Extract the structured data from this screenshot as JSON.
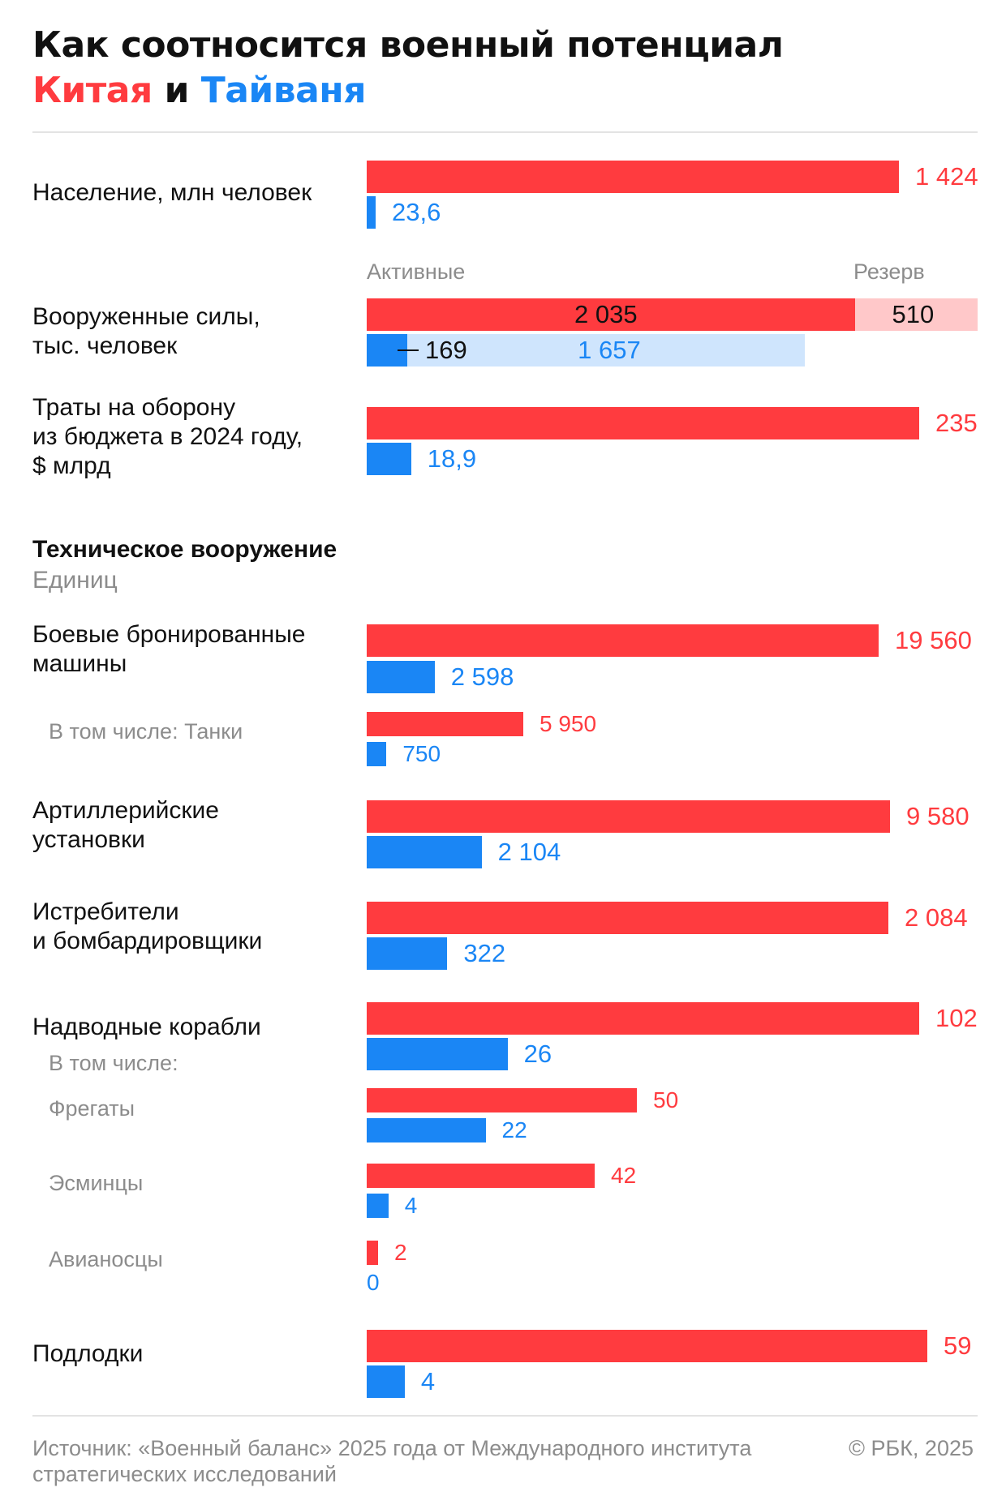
{
  "title": {
    "line1": "Как соотносится военный потенциал",
    "china": "Китая",
    "and": " и ",
    "taiwan": "Тайваня"
  },
  "colors": {
    "china": "#ff3b3f",
    "taiwan": "#1a86f5",
    "china_reserve": "#ffc8c9",
    "taiwan_reserve": "#cfe5fd",
    "muted": "#8c8c8c"
  },
  "chart_data": {
    "type": "bar",
    "orientation": "horizontal",
    "series_names": [
      "Китая",
      "Тайваня"
    ],
    "note": "",
    "population": {
      "label": "Население, млн человек",
      "china": 1424,
      "china_label": "1 424",
      "taiwan": 23.6,
      "taiwan_label": "23,6"
    },
    "forces": {
      "label_line1": "Вооруженные силы,",
      "label_line2": "тыс. человек",
      "active_hint": "Активные",
      "reserve_hint": "Резерв",
      "china_active": 2035,
      "china_active_label": "2 035",
      "china_reserve": 510,
      "china_reserve_label": "510",
      "taiwan_active": 169,
      "taiwan_active_label": "169",
      "taiwan_reserve": 1657,
      "taiwan_reserve_label": "1 657"
    },
    "budget": {
      "label_line1": "Траты на оборону",
      "label_line2": "из бюджета в 2024 году,",
      "label_line3": "$ млрд",
      "china": 235,
      "china_label": "235",
      "taiwan": 18.9,
      "taiwan_label": "18,9"
    },
    "section_title": "Техническое вооружение",
    "section_units": "Единиц",
    "armored": {
      "label_line1": "Боевые бронированные",
      "label_line2": "машины",
      "china": 19560,
      "china_label": "19 560",
      "taiwan": 2598,
      "taiwan_label": "2 598"
    },
    "tanks": {
      "label": "В том числе: Танки",
      "china": 5950,
      "china_label": "5 950",
      "taiwan": 750,
      "taiwan_label": "750"
    },
    "artillery": {
      "label_line1": "Артиллерийские",
      "label_line2": "установки",
      "china": 9580,
      "china_label": "9 580",
      "taiwan": 2104,
      "taiwan_label": "2 104"
    },
    "aircraft": {
      "label_line1": "Истребители",
      "label_line2": "и бомбардировщики",
      "china": 2084,
      "china_label": "2 084",
      "taiwan": 322,
      "taiwan_label": "322"
    },
    "ships": {
      "label": "Надводные корабли",
      "sub_label": "В том числе:",
      "china": 102,
      "china_label": "102",
      "taiwan": 26,
      "taiwan_label": "26"
    },
    "frigates": {
      "label": "Фрегаты",
      "china": 50,
      "china_label": "50",
      "taiwan": 22,
      "taiwan_label": "22"
    },
    "destroyers": {
      "label": "Эсминцы",
      "china": 42,
      "china_label": "42",
      "taiwan": 4,
      "taiwan_label": "4"
    },
    "carriers": {
      "label": "Авианосцы",
      "china": 2,
      "china_label": "2",
      "taiwan": 0,
      "taiwan_label": "0"
    },
    "subs": {
      "label": "Подлодки",
      "china": 59,
      "china_label": "59",
      "taiwan": 4,
      "taiwan_label": "4"
    }
  },
  "footer": {
    "source": "Источник: «Военный баланс» 2025 года от Международного института стратегических исследований",
    "copyright": "© РБК, 2025"
  }
}
